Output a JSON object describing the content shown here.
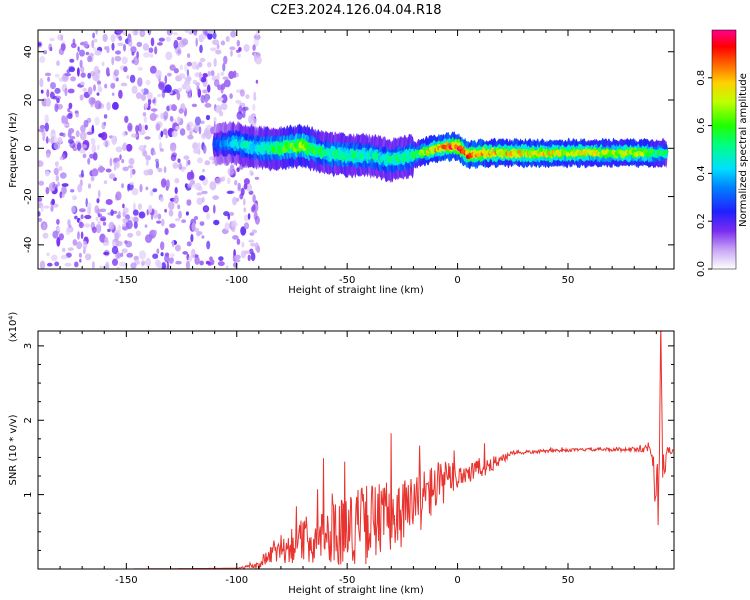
{
  "title": "C2E3.2024.126.04.04.R18",
  "chart_data": [
    {
      "type": "heatmap",
      "xlabel": "Height of straight line (km)",
      "ylabel": "Frequency (Hz)",
      "xlim": [
        -190,
        98
      ],
      "ylim": [
        -50,
        49
      ],
      "x_ticks": [
        -150,
        -100,
        -50,
        0,
        50
      ],
      "y_ticks": [
        -40,
        -20,
        0,
        20,
        40
      ],
      "colorbar": {
        "label": "Normalized spectral amplitude",
        "range": [
          0,
          1
        ],
        "ticks": [
          "0.0",
          "0.2",
          "0.4",
          "0.6",
          "0.8"
        ]
      },
      "ridge": {
        "x": [
          -110,
          -100,
          -90,
          -80,
          -70,
          -60,
          -50,
          -40,
          -30,
          -20,
          -10,
          0,
          5,
          10,
          20,
          50,
          85,
          95
        ],
        "y": [
          2,
          2,
          0,
          0,
          1,
          -2,
          -3,
          -3,
          -5,
          -3,
          0,
          1,
          -3,
          -2,
          -2,
          -2,
          -2,
          -2
        ],
        "peak_amplitude": [
          0.3,
          0.45,
          0.5,
          0.6,
          0.65,
          0.5,
          0.55,
          0.5,
          0.5,
          0.55,
          0.8,
          0.95,
          0.9,
          0.85,
          0.8,
          0.75,
          0.7,
          0.5
        ]
      },
      "noise_region_x": [
        -190,
        -100
      ]
    },
    {
      "type": "line",
      "xlabel": "Height of straight line (km)",
      "ylabel": "SNR (10 * v/v)",
      "y_multiplier": "(x10⁴)",
      "xlim": [
        -190,
        98
      ],
      "ylim": [
        0,
        3.2
      ],
      "x_ticks": [
        -150,
        -100,
        -50,
        0,
        50
      ],
      "y_ticks": [
        1,
        2,
        3
      ],
      "series_color": "#e8332e",
      "x": [
        -190,
        -150,
        -100,
        -90,
        -85,
        -80,
        -70,
        -60,
        -50,
        -40,
        -30,
        -20,
        -10,
        0,
        10,
        20,
        25,
        40,
        60,
        80,
        85,
        88,
        90,
        91,
        92,
        93,
        95,
        98
      ],
      "base": [
        0,
        0,
        0.01,
        0.03,
        0.15,
        0.2,
        0.3,
        0.35,
        0.4,
        0.45,
        0.55,
        0.7,
        1.0,
        1.2,
        1.3,
        1.45,
        1.55,
        1.58,
        1.6,
        1.6,
        1.6,
        1.55,
        1.0,
        0.45,
        3.2,
        1.2,
        1.6,
        1.55
      ],
      "noise": [
        0,
        0,
        0,
        0.05,
        0.15,
        0.2,
        0.3,
        0.4,
        0.5,
        0.55,
        0.5,
        0.45,
        0.35,
        0.2,
        0.15,
        0.06,
        0.03,
        0.02,
        0.02,
        0.03,
        0.05,
        0.1,
        0.6,
        0.5,
        0.1,
        0.3,
        0.05,
        0.03
      ]
    }
  ]
}
